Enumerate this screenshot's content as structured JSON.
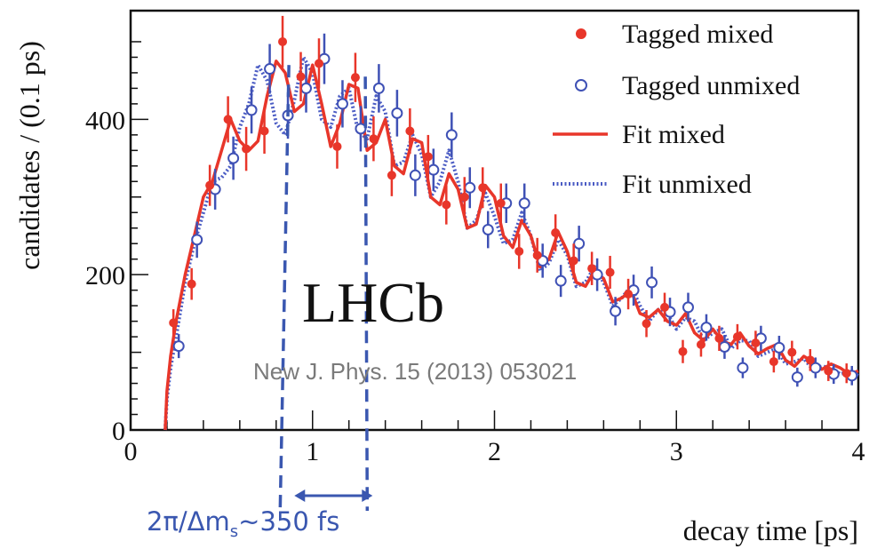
{
  "chart_data": {
    "type": "scatter",
    "xlabel": "decay time [ps]",
    "ylabel": "candidates / (0.1 ps)",
    "xlim": [
      0,
      4
    ],
    "ylim": [
      0,
      540
    ],
    "x_ticks": [
      "0",
      "1",
      "2",
      "3",
      "4"
    ],
    "y_ticks": [
      "0",
      "200",
      "400"
    ],
    "legend_position": "top-right",
    "series": [
      {
        "name": "Tagged mixed",
        "style": "filled-circle",
        "color": "#e8362a",
        "x": [
          0.25,
          0.35,
          0.45,
          0.55,
          0.65,
          0.75,
          0.85,
          0.95,
          1.05,
          1.15,
          1.25,
          1.35,
          1.45,
          1.55,
          1.65,
          1.75,
          1.85,
          1.95,
          2.05,
          2.15,
          2.25,
          2.35,
          2.45,
          2.55,
          2.65,
          2.75,
          2.85,
          2.95,
          3.05,
          3.15,
          3.25,
          3.35,
          3.45,
          3.55,
          3.65,
          3.75,
          3.85,
          3.95
        ],
        "y": [
          138,
          188,
          315,
          400,
          362,
          385,
          500,
          455,
          472,
          365,
          454,
          375,
          328,
          385,
          352,
          290,
          300,
          312,
          292,
          230,
          225,
          254,
          218,
          208,
          203,
          175,
          137,
          158,
          101,
          110,
          118,
          120,
          112,
          88,
          100,
          90,
          76,
          73
        ]
      },
      {
        "name": "Tagged unmixed",
        "style": "open-circle",
        "color": "#3f51b5",
        "x": [
          0.25,
          0.35,
          0.45,
          0.55,
          0.65,
          0.75,
          0.85,
          0.95,
          1.05,
          1.15,
          1.25,
          1.35,
          1.45,
          1.55,
          1.65,
          1.75,
          1.85,
          1.95,
          2.05,
          2.15,
          2.25,
          2.35,
          2.45,
          2.55,
          2.65,
          2.75,
          2.85,
          2.95,
          3.05,
          3.15,
          3.25,
          3.35,
          3.45,
          3.55,
          3.65,
          3.75,
          3.85,
          3.95
        ],
        "y": [
          108,
          245,
          310,
          350,
          412,
          465,
          405,
          440,
          478,
          420,
          388,
          440,
          408,
          328,
          335,
          380,
          312,
          258,
          292,
          292,
          218,
          192,
          240,
          200,
          153,
          180,
          190,
          152,
          158,
          132,
          107,
          80,
          118,
          106,
          68,
          80,
          72,
          70
        ]
      },
      {
        "name": "Fit mixed",
        "style": "solid-line",
        "color": "#e8362a",
        "x": [
          0.19,
          0.2,
          0.22,
          0.25,
          0.3,
          0.35,
          0.4,
          0.45,
          0.5,
          0.55,
          0.6,
          0.65,
          0.7,
          0.75,
          0.8,
          0.85,
          0.9,
          0.95,
          1.0,
          1.05,
          1.1,
          1.15,
          1.2,
          1.25,
          1.3,
          1.35,
          1.4,
          1.45,
          1.5,
          1.55,
          1.6,
          1.65,
          1.7,
          1.75,
          1.8,
          1.85,
          1.9,
          1.95,
          2.0,
          2.05,
          2.1,
          2.15,
          2.2,
          2.25,
          2.3,
          2.35,
          2.4,
          2.45,
          2.5,
          2.55,
          2.6,
          2.65,
          2.7,
          2.75,
          2.8,
          2.85,
          2.9,
          2.95,
          3.0,
          3.05,
          3.1,
          3.15,
          3.2,
          3.25,
          3.3,
          3.35,
          3.4,
          3.45,
          3.5,
          3.55,
          3.6,
          3.65,
          3.7,
          3.75,
          3.8,
          3.85,
          3.9,
          3.95,
          4.0
        ],
        "y": [
          0,
          50,
          95,
          140,
          200,
          250,
          300,
          320,
          360,
          400,
          372,
          360,
          372,
          430,
          475,
          460,
          410,
          420,
          470,
          420,
          365,
          395,
          445,
          440,
          360,
          370,
          400,
          340,
          330,
          375,
          370,
          300,
          290,
          330,
          310,
          260,
          265,
          315,
          300,
          250,
          235,
          270,
          250,
          210,
          220,
          255,
          230,
          190,
          185,
          205,
          195,
          165,
          170,
          180,
          150,
          145,
          155,
          140,
          135,
          150,
          125,
          115,
          130,
          115,
          110,
          125,
          108,
          98,
          105,
          110,
          90,
          82,
          95,
          88,
          78,
          85,
          80,
          72,
          76
        ]
      },
      {
        "name": "Fit unmixed",
        "style": "dotted-line",
        "color": "#4b5cc4",
        "x": [
          0.19,
          0.2,
          0.22,
          0.25,
          0.3,
          0.35,
          0.4,
          0.45,
          0.5,
          0.55,
          0.6,
          0.65,
          0.7,
          0.75,
          0.8,
          0.85,
          0.9,
          0.95,
          1.0,
          1.05,
          1.1,
          1.15,
          1.2,
          1.25,
          1.3,
          1.35,
          1.4,
          1.45,
          1.5,
          1.55,
          1.6,
          1.65,
          1.7,
          1.75,
          1.8,
          1.85,
          1.9,
          1.95,
          2.0,
          2.05,
          2.1,
          2.15,
          2.2,
          2.25,
          2.3,
          2.35,
          2.4,
          2.45,
          2.5,
          2.55,
          2.6,
          2.65,
          2.7,
          2.75,
          2.8,
          2.85,
          2.9,
          2.95,
          3.0,
          3.05,
          3.1,
          3.15,
          3.2,
          3.25,
          3.3,
          3.35,
          3.4,
          3.45,
          3.5,
          3.55,
          3.6,
          3.65,
          3.7,
          3.75,
          3.8,
          3.85,
          3.9,
          3.95,
          4.0
        ],
        "y": [
          0,
          40,
          80,
          120,
          190,
          240,
          280,
          320,
          325,
          340,
          390,
          420,
          470,
          450,
          395,
          380,
          425,
          480,
          460,
          400,
          390,
          430,
          440,
          385,
          375,
          430,
          410,
          340,
          345,
          380,
          355,
          300,
          320,
          360,
          320,
          260,
          270,
          305,
          275,
          240,
          245,
          280,
          250,
          205,
          215,
          245,
          225,
          185,
          190,
          210,
          190,
          160,
          170,
          185,
          160,
          140,
          155,
          150,
          130,
          145,
          140,
          115,
          125,
          130,
          105,
          115,
          115,
          95,
          100,
          105,
          85,
          88,
          92,
          78,
          82,
          80,
          72,
          75,
          70
        ]
      }
    ],
    "annotations": {
      "experiment": "LHCb",
      "reference": "New J. Phys. 15 (2013) 053021",
      "period_label": "2π/Δm",
      "period_subscript": "s",
      "period_value": "~350 fs",
      "marker_lines_x": [
        0.87,
        1.29
      ],
      "arrow_x": [
        0.9,
        1.33
      ]
    }
  }
}
